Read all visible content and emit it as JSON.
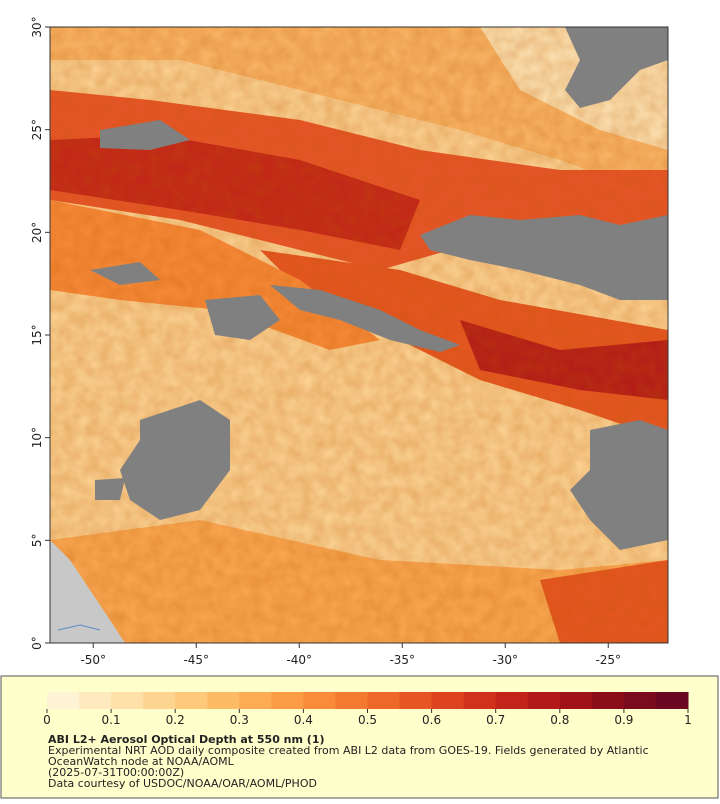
{
  "map": {
    "xlim": [
      -52.1,
      -22.1
    ],
    "ylim": [
      0,
      30
    ],
    "xticks": [
      {
        "value": -50,
        "label": "-50°"
      },
      {
        "value": -45,
        "label": "-45°"
      },
      {
        "value": -40,
        "label": "-40°"
      },
      {
        "value": -35,
        "label": "-35°"
      },
      {
        "value": -30,
        "label": "-30°"
      },
      {
        "value": -25,
        "label": "-25°"
      }
    ],
    "yticks": [
      {
        "value": 0,
        "label": "0°"
      },
      {
        "value": 5,
        "label": "5°"
      },
      {
        "value": 10,
        "label": "10°"
      },
      {
        "value": 15,
        "label": "15°"
      },
      {
        "value": 20,
        "label": "20°"
      },
      {
        "value": 25,
        "label": "25°"
      },
      {
        "value": 30,
        "label": "30°"
      }
    ]
  },
  "colorbar": {
    "lim": [
      0,
      1
    ],
    "ticks": [
      0,
      0.1,
      0.2,
      0.3,
      0.4,
      0.5,
      0.6,
      0.7,
      0.8,
      0.9,
      1
    ],
    "colors": [
      "#fff3d6",
      "#ffeac0",
      "#ffe0a8",
      "#fed590",
      "#fec97a",
      "#fdbb66",
      "#fdac54",
      "#fc9c45",
      "#f98b3a",
      "#f47a31",
      "#ee6829",
      "#e65523",
      "#dc431e",
      "#d0321b",
      "#c3241a",
      "#b31919",
      "#a01218",
      "#8c0d1a",
      "#7a0a1d",
      "#6b0620"
    ]
  },
  "caption": {
    "title": "ABI L2+ Aerosol Optical Depth at 550 nm (1)",
    "lines": [
      "Experimental NRT AOD daily composite created from ABI L2 data from GOES-19. Fields generated by Atlantic",
      "OceanWatch node at NOAA/AOML",
      "(2025-07-31T00:00:00Z)",
      "Data courtesy of USDOC/NOAA/OAR/AOML/PHOD"
    ]
  }
}
